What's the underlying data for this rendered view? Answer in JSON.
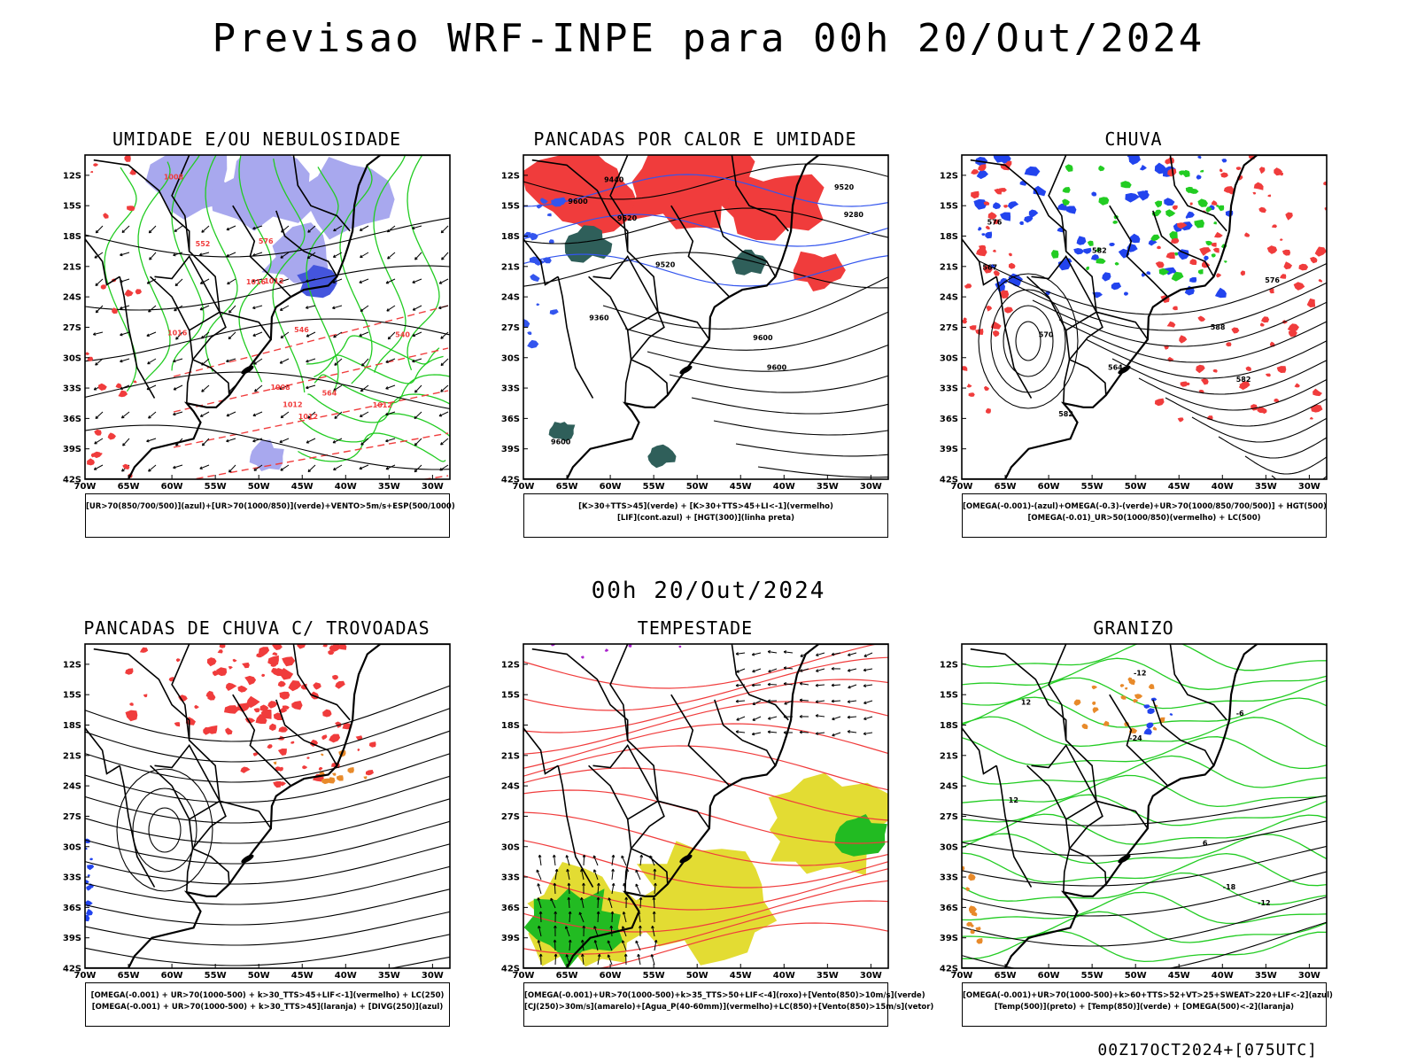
{
  "header": {
    "title": "Previsao WRF-INPE  para 00h 20/Out/2024",
    "mid_date": "00h 20/Out/2024",
    "footer": "00Z17OCT2024+[075UTC]"
  },
  "axes": {
    "lat_labels": [
      "12S",
      "15S",
      "18S",
      "21S",
      "24S",
      "27S",
      "30S",
      "33S",
      "36S",
      "39S",
      "42S"
    ],
    "lon_labels": [
      "70W",
      "65W",
      "60W",
      "55W",
      "50W",
      "45W",
      "40W",
      "35W",
      "30W"
    ]
  },
  "colors": {
    "red": "#f03c3c",
    "green": "#22cc22",
    "blue": "#2244ee",
    "lavender": "#a8a8ee",
    "darkteal": "#2f5f5a",
    "yellow": "#e3dc33",
    "orange": "#e88a2a",
    "black": "#000000"
  },
  "panels": [
    {
      "title": "UMIDADE E/OU NEBULOSIDADE",
      "caption": [
        "[UR>70(850/700/500)](azul)+[UR>70(1000/850)](verde)+VENTO>5m/s+ESP(500/1000)"
      ],
      "contour_labels": [
        "1008",
        "1012",
        "1012",
        "1012",
        "1016",
        "1016",
        "1008",
        "1012",
        "576",
        "564",
        "552",
        "546",
        "540"
      ]
    },
    {
      "title": "PANCADAS POR CALOR E UMIDADE",
      "caption": [
        "[K>30+TTS>45](verde) + [K>30+TTS>45+LI<-1](vermelho)",
        "[LIF](cont.azul) + [HGT(300)](linha preta)"
      ],
      "contour_labels": [
        "9600",
        "9600",
        "9600",
        "9600",
        "9520",
        "9520",
        "9520",
        "9440",
        "9360",
        "9280"
      ]
    },
    {
      "title": "CHUVA",
      "caption": [
        "[OMEGA(-0.001)-(azul)+OMEGA(-0.3)-(verde)+UR>70(1000/850/700/500)] + HGT(500)",
        "[OMEGA(-0.01)_UR>50(1000/850)(vermelho) + LC(500)"
      ],
      "contour_labels": [
        "582",
        "582",
        "576",
        "576",
        "570",
        "567",
        "564",
        "582",
        "588"
      ]
    },
    {
      "title": "PANCADAS DE CHUVA C/ TROVOADAS",
      "caption": [
        "[OMEGA(-0.001) + UR>70(1000-500) + k>30_TTS>45+LIF<-1](vermelho) + LC(250)",
        "[OMEGA(-0.001) + UR>70(1000-500) + k>30_TTS>45](laranja) + [DIVG(250)](azul)"
      ],
      "contour_labels": []
    },
    {
      "title": "TEMPESTADE",
      "caption": [
        "[OMEGA(-0.001)+UR>70(1000-500)+k>35_TTS>50+LIF<-4](roxo)+[Vento(850)>10m/s](verde)",
        "[CJ(250)>30m/s](amarelo)+[Agua_P(40-60mm)](vermelho)+LC(850)+[Vento(850)>15m/s](vetor)"
      ],
      "contour_labels": []
    },
    {
      "title": "GRANIZO",
      "caption": [
        "[OMEGA(-0.001)+UR>70(1000-500)+k>60+TTS>52+VT>25+SWEAT>220+LIF<-2](azul)",
        "[Temp(500)](preto) + [Temp(850)](verde) + [OMEGA(500)<-2](laranja)"
      ],
      "contour_labels": [
        "-6",
        "-12",
        "-12",
        "-18",
        "-24",
        "12",
        "12",
        "6"
      ]
    }
  ]
}
